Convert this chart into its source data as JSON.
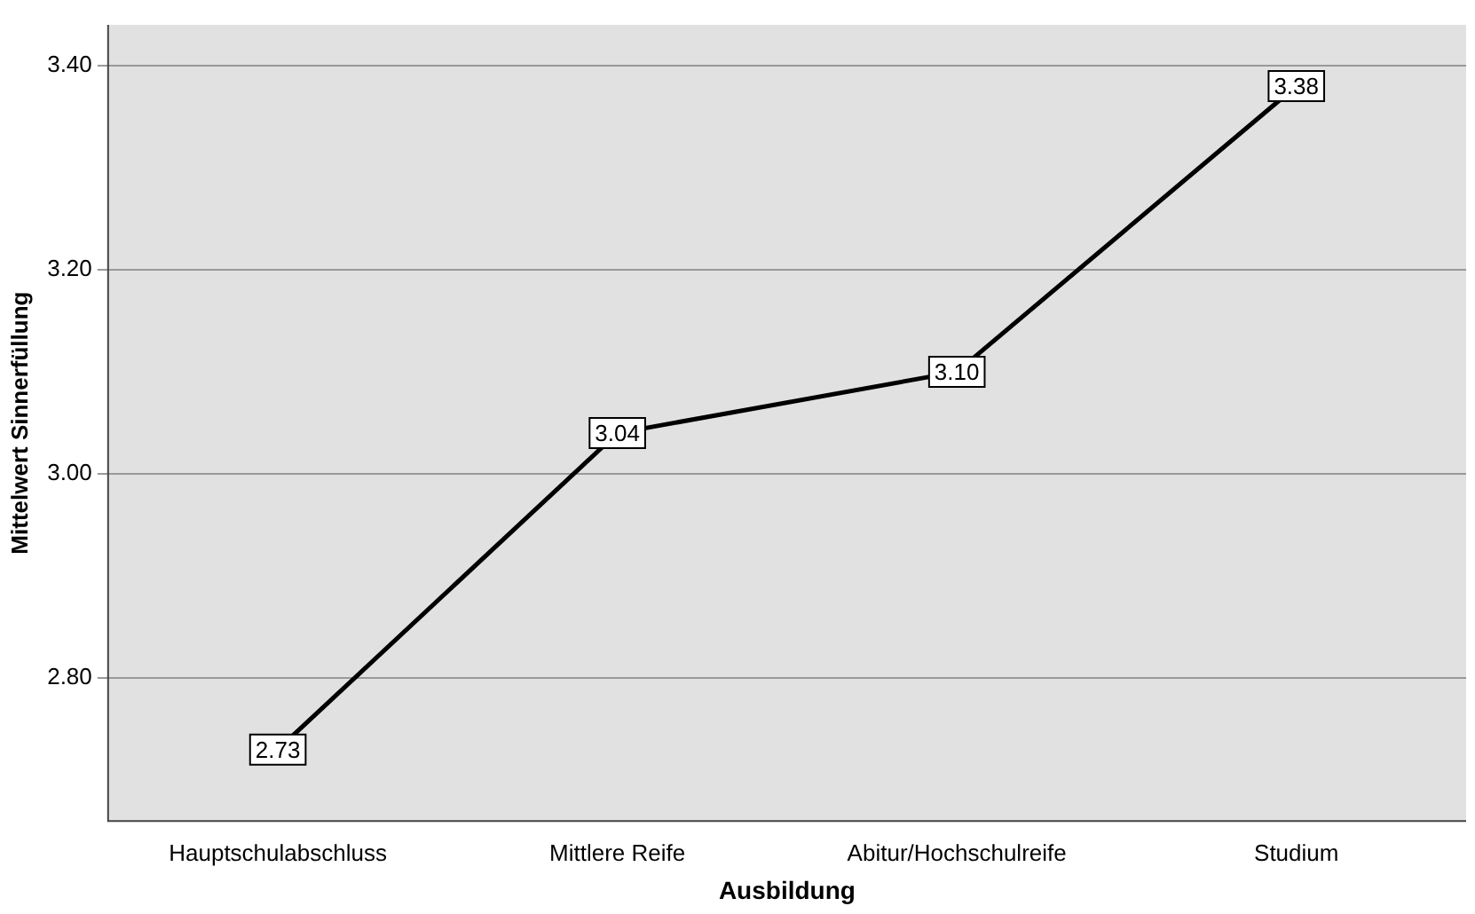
{
  "chart_data": {
    "type": "line",
    "xlabel": "Ausbildung",
    "ylabel": "Mittelwert Sinnerfüllung",
    "categories": [
      "Hauptschulabschluss",
      "Mittlere Reife",
      "Abitur/Hochschulreife",
      "Studium"
    ],
    "series": [
      {
        "color": "#000000",
        "values": [
          2.73,
          3.04,
          3.1,
          3.38
        ],
        "value_labels": [
          "2.73",
          "3.04",
          "3.10",
          "3.38"
        ]
      }
    ],
    "ylim": [
      2.66,
      3.44
    ],
    "yticks": [
      {
        "value": 2.8,
        "label": "2.80"
      },
      {
        "value": 3.0,
        "label": "3.00"
      },
      {
        "value": 3.2,
        "label": "3.20"
      },
      {
        "value": 3.4,
        "label": "3.40"
      }
    ],
    "grid": "y",
    "legend": false,
    "marker": "square",
    "line_style": "solid"
  }
}
